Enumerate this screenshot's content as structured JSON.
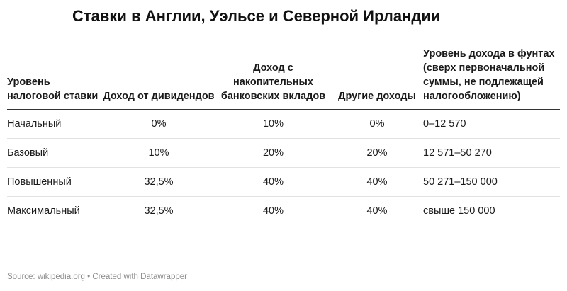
{
  "title": "Ставки в Англии, Уэльсе и Северной Ирландии",
  "table": {
    "headers": [
      "Уровень налоговой ставки",
      "Доход от дивидендов",
      "Доход с накопительных банковских вкладов",
      "Другие доходы",
      "Уровень дохода в фунтах (сверх первоначальной суммы, не подлежащей налогообложению)"
    ],
    "rows": [
      [
        "Начальный",
        "0%",
        "10%",
        "0%",
        "0–12 570"
      ],
      [
        "Базовый",
        "10%",
        "20%",
        "20%",
        "12 571–50 270"
      ],
      [
        "Повышенный",
        "32,5%",
        "40%",
        "40%",
        "50 271–150 000"
      ],
      [
        "Максимальный",
        "32,5%",
        "40%",
        "40%",
        "свыше 150 000"
      ]
    ]
  },
  "footer": "Source: wikipedia.org • Created with Datawrapper"
}
